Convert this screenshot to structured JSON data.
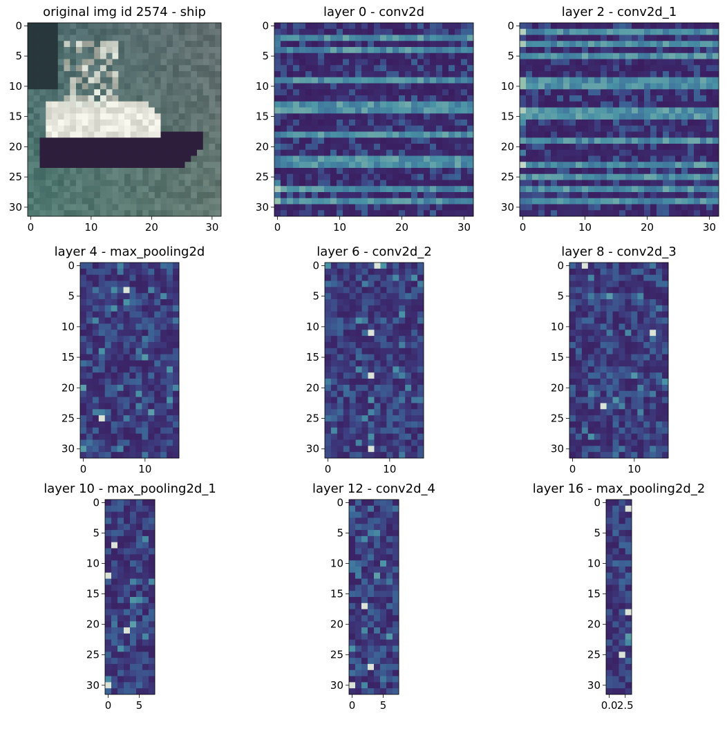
{
  "colors": {
    "colormap": [
      "#3a1a5c",
      "#3d3d80",
      "#3c6898",
      "#4a93a6",
      "#98c2ae",
      "#f2efe6"
    ],
    "background": "#ffffff"
  },
  "chart_data": [
    {
      "type": "heatmap",
      "title": "original img id 2574 - ship",
      "content": "rgb-image",
      "rows": 32,
      "cols": 32,
      "xticks": [
        "0",
        "10",
        "20",
        "30"
      ],
      "xtick_values": [
        0,
        10,
        20,
        30
      ],
      "yticks": [
        "0",
        "5",
        "10",
        "15",
        "20",
        "25",
        "30"
      ],
      "ytick_values": [
        0,
        5,
        10,
        15,
        20,
        25,
        30
      ],
      "xlim": [
        -0.5,
        31.5
      ],
      "ylim": [
        31.5,
        -0.5
      ]
    },
    {
      "type": "heatmap",
      "title": "layer 0 - conv2d",
      "content": "activation-map",
      "rows": 32,
      "cols": 32,
      "bright_rows": [
        2,
        4,
        9,
        13,
        14,
        18,
        22,
        23,
        27,
        29
      ],
      "xticks": [
        "0",
        "10",
        "20",
        "30"
      ],
      "xtick_values": [
        0,
        10,
        20,
        30
      ],
      "yticks": [
        "0",
        "5",
        "10",
        "15",
        "20",
        "25",
        "30"
      ],
      "ytick_values": [
        0,
        5,
        10,
        15,
        20,
        25,
        30
      ],
      "xlim": [
        -0.5,
        31.5
      ],
      "ylim": [
        31.5,
        -0.5
      ]
    },
    {
      "type": "heatmap",
      "title": "layer 2 - conv2d_1",
      "content": "activation-map",
      "rows": 32,
      "cols": 32,
      "bright_rows": [
        1,
        3,
        5,
        9,
        10,
        14,
        15,
        19,
        23,
        25,
        27,
        29
      ],
      "xticks": [
        "0",
        "10",
        "20",
        "30"
      ],
      "xtick_values": [
        0,
        10,
        20,
        30
      ],
      "yticks": [
        "0",
        "5",
        "10",
        "15",
        "20",
        "25",
        "30"
      ],
      "ytick_values": [
        0,
        5,
        10,
        15,
        20,
        25,
        30
      ],
      "xlim": [
        -0.5,
        31.5
      ],
      "ylim": [
        31.5,
        -0.5
      ]
    },
    {
      "type": "heatmap",
      "title": "layer 4 - max_pooling2d",
      "content": "activation-map",
      "rows": 32,
      "cols": 16,
      "hot_cells": [
        [
          4,
          7
        ],
        [
          25,
          3
        ]
      ],
      "xticks": [
        "0",
        "10"
      ],
      "xtick_values": [
        0,
        10
      ],
      "yticks": [
        "0",
        "5",
        "10",
        "15",
        "20",
        "25",
        "30"
      ],
      "ytick_values": [
        0,
        5,
        10,
        15,
        20,
        25,
        30
      ],
      "xlim": [
        -0.5,
        15.5
      ],
      "ylim": [
        31.5,
        -0.5
      ]
    },
    {
      "type": "heatmap",
      "title": "layer 6 - conv2d_2",
      "content": "activation-map",
      "rows": 32,
      "cols": 16,
      "hot_cells": [
        [
          11,
          7
        ],
        [
          18,
          7
        ],
        [
          30,
          7
        ],
        [
          0,
          8
        ]
      ],
      "xticks": [
        "0",
        "10"
      ],
      "xtick_values": [
        0,
        10
      ],
      "yticks": [
        "0",
        "5",
        "10",
        "15",
        "20",
        "25",
        "30"
      ],
      "ytick_values": [
        0,
        5,
        10,
        15,
        20,
        25,
        30
      ],
      "xlim": [
        -0.5,
        15.5
      ],
      "ylim": [
        31.5,
        -0.5
      ]
    },
    {
      "type": "heatmap",
      "title": "layer 8 - conv2d_3",
      "content": "activation-map",
      "rows": 32,
      "cols": 16,
      "hot_cells": [
        [
          0,
          2
        ],
        [
          11,
          13
        ],
        [
          23,
          5
        ]
      ],
      "xticks": [
        "0",
        "10"
      ],
      "xtick_values": [
        0,
        10
      ],
      "yticks": [
        "0",
        "5",
        "10",
        "15",
        "20",
        "25",
        "30"
      ],
      "ytick_values": [
        0,
        5,
        10,
        15,
        20,
        25,
        30
      ],
      "xlim": [
        -0.5,
        15.5
      ],
      "ylim": [
        31.5,
        -0.5
      ]
    },
    {
      "type": "heatmap",
      "title": "layer 10 - max_pooling2d_1",
      "content": "activation-map",
      "rows": 32,
      "cols": 8,
      "hot_cells": [
        [
          21,
          3
        ],
        [
          30,
          0
        ],
        [
          12,
          0
        ],
        [
          7,
          1
        ]
      ],
      "xticks": [
        "0",
        "5"
      ],
      "xtick_values": [
        0,
        5
      ],
      "yticks": [
        "0",
        "5",
        "10",
        "15",
        "20",
        "25",
        "30"
      ],
      "ytick_values": [
        0,
        5,
        10,
        15,
        20,
        25,
        30
      ],
      "xlim": [
        -0.5,
        7.5
      ],
      "ylim": [
        31.5,
        -0.5
      ]
    },
    {
      "type": "heatmap",
      "title": "layer 12 - conv2d_4",
      "content": "activation-map",
      "rows": 32,
      "cols": 8,
      "hot_cells": [
        [
          30,
          0
        ],
        [
          27,
          3
        ],
        [
          17,
          2
        ]
      ],
      "xticks": [
        "0",
        "5"
      ],
      "xtick_values": [
        0,
        5
      ],
      "yticks": [
        "0",
        "5",
        "10",
        "15",
        "20",
        "25",
        "30"
      ],
      "ytick_values": [
        0,
        5,
        10,
        15,
        20,
        25,
        30
      ],
      "xlim": [
        -0.5,
        7.5
      ],
      "ylim": [
        31.5,
        -0.5
      ]
    },
    {
      "type": "heatmap",
      "title": "layer 16 - max_pooling2d_2",
      "content": "activation-map",
      "rows": 32,
      "cols": 4,
      "hot_cells": [
        [
          25,
          2
        ],
        [
          1,
          3
        ],
        [
          18,
          3
        ]
      ],
      "xticks": [
        "0.0",
        "2.5"
      ],
      "xtick_values": [
        0,
        2.5
      ],
      "yticks": [
        "0",
        "5",
        "10",
        "15",
        "20",
        "25",
        "30"
      ],
      "ytick_values": [
        0,
        5,
        10,
        15,
        20,
        25,
        30
      ],
      "xlim": [
        -0.5,
        3.5
      ],
      "ylim": [
        31.5,
        -0.5
      ]
    }
  ]
}
